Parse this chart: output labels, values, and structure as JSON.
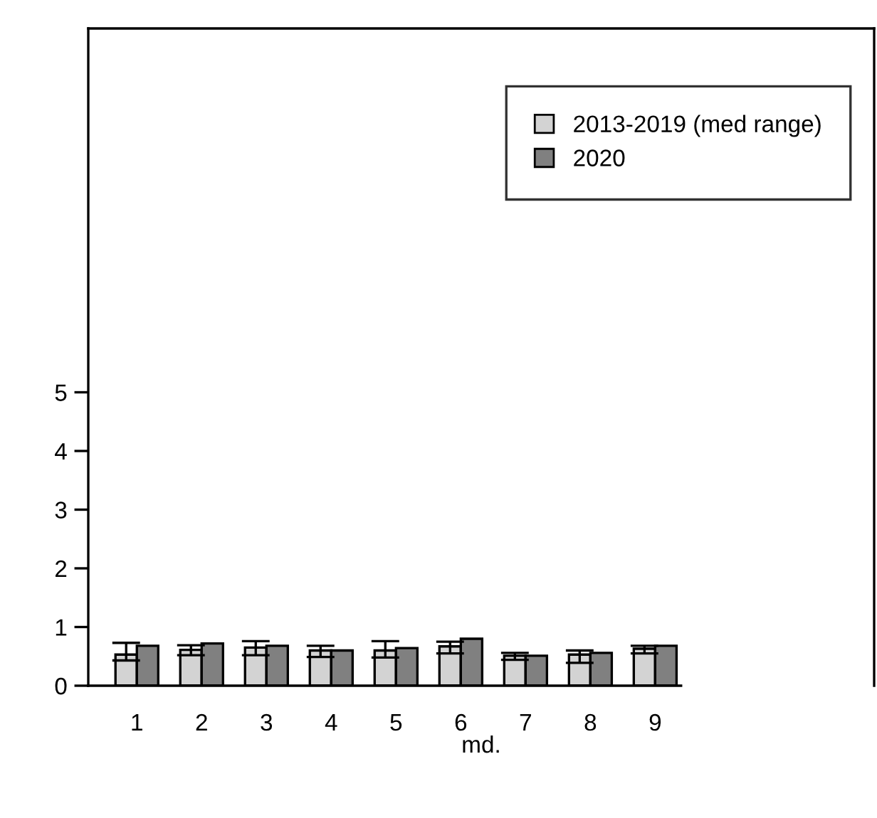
{
  "chart_data": {
    "type": "bar",
    "xlabel": "md.",
    "categories": [
      "1",
      "2",
      "3",
      "4",
      "5",
      "6",
      "7",
      "8",
      "9"
    ],
    "series": [
      {
        "name": "2013-2019 (med range)",
        "color": "#d3d3d3",
        "values": [
          0.53,
          0.61,
          0.65,
          0.6,
          0.6,
          0.67,
          0.51,
          0.53,
          0.63
        ],
        "errors": [
          [
            0.43,
            0.73
          ],
          [
            0.52,
            0.69
          ],
          [
            0.52,
            0.76
          ],
          [
            0.49,
            0.68
          ],
          [
            0.48,
            0.76
          ],
          [
            0.55,
            0.75
          ],
          [
            0.44,
            0.56
          ],
          [
            0.39,
            0.6
          ],
          [
            0.55,
            0.68
          ]
        ]
      },
      {
        "name": "2020",
        "color": "#808080",
        "values": [
          0.68,
          0.72,
          0.68,
          0.6,
          0.64,
          0.8,
          0.51,
          0.56,
          0.68
        ]
      }
    ],
    "ylim": [
      0,
      11.2
    ],
    "yticks": [
      0,
      1,
      2,
      3,
      4,
      5
    ],
    "grid": false,
    "legend": "top right"
  }
}
